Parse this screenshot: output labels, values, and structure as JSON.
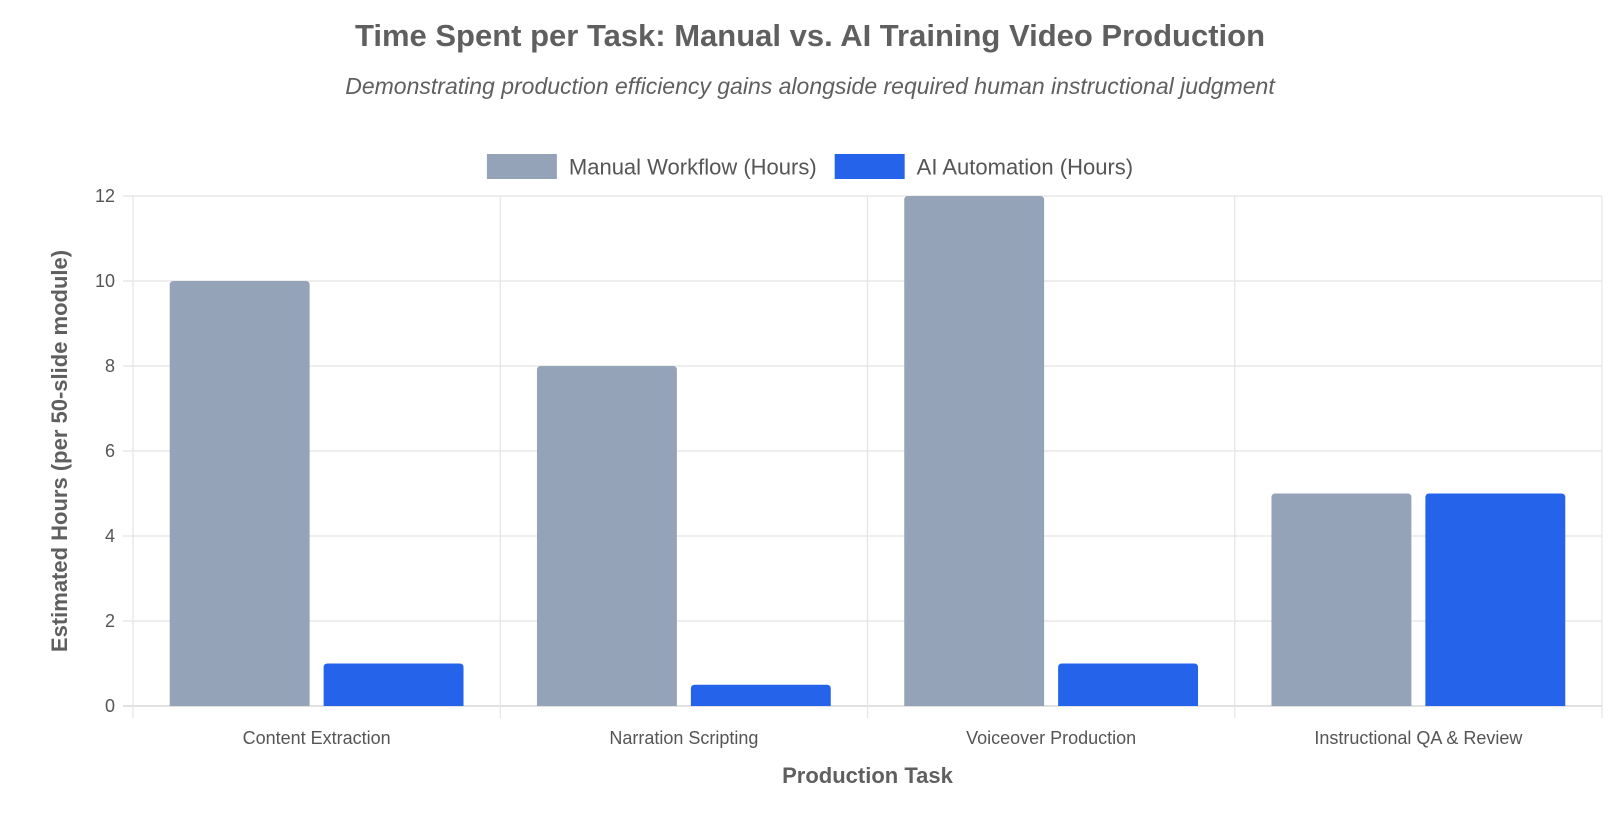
{
  "chart_data": {
    "type": "bar",
    "title": "Time Spent per Task: Manual vs. AI Training Video Production",
    "subtitle": "Demonstrating production efficiency gains alongside required human instructional judgment",
    "xlabel": "Production Task",
    "ylabel": "Estimated Hours (per 50-slide module)",
    "categories": [
      "Content Extraction",
      "Narration Scripting",
      "Voiceover Production",
      "Instructional QA & Review"
    ],
    "series": [
      {
        "name": "Manual Workflow (Hours)",
        "values": [
          10,
          8,
          12,
          5
        ],
        "color": "#94a3b8"
      },
      {
        "name": "AI Automation (Hours)",
        "values": [
          1,
          0.5,
          1,
          5
        ],
        "color": "#2563eb"
      }
    ],
    "ylim": [
      0,
      12
    ],
    "yticks": [
      0,
      2,
      4,
      6,
      8,
      10,
      12
    ],
    "grid": true,
    "legend_position": "top-center"
  }
}
